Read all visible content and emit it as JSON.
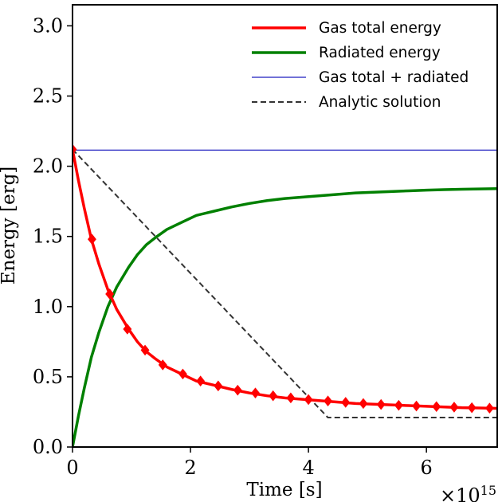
{
  "chart_data": {
    "type": "line",
    "title": "",
    "xlabel": "Time [s]",
    "ylabel": "Energy [erg]",
    "x_scale_label": "×10",
    "x_scale_exponent": "15",
    "xlim": [
      0,
      7.2
    ],
    "ylim": [
      0,
      3.15
    ],
    "x_ticks": [
      0,
      2,
      4,
      6
    ],
    "y_ticks": [
      0.0,
      0.5,
      1.0,
      1.5,
      2.0,
      2.5,
      3.0
    ],
    "y_tick_labels": [
      "0.0",
      "0.5",
      "1.0",
      "1.5",
      "2.0",
      "2.5",
      "3.0"
    ],
    "grid": false,
    "legend_position": "top-right",
    "series": [
      {
        "name": "Gas total energy",
        "color": "#ff0000",
        "style": "solid-with-diamond-markers",
        "x": [
          0,
          0.1,
          0.2,
          0.32,
          0.45,
          0.6,
          0.75,
          0.95,
          1.1,
          1.25,
          1.4,
          1.6,
          1.85,
          2.1,
          2.4,
          2.7,
          3.0,
          3.3,
          3.6,
          3.9,
          4.2,
          4.5,
          4.8,
          5.1,
          5.4,
          5.7,
          6.0,
          6.3,
          6.6,
          6.9,
          7.2
        ],
        "y": [
          2.12,
          1.9,
          1.7,
          1.48,
          1.3,
          1.12,
          0.98,
          0.84,
          0.75,
          0.68,
          0.63,
          0.57,
          0.52,
          0.47,
          0.44,
          0.41,
          0.385,
          0.365,
          0.35,
          0.34,
          0.33,
          0.32,
          0.31,
          0.305,
          0.3,
          0.295,
          0.29,
          0.285,
          0.28,
          0.278,
          0.275
        ],
        "marker_x": [
          0,
          0.33,
          0.63,
          0.93,
          1.23,
          1.53,
          1.87,
          2.17,
          2.47,
          2.8,
          3.1,
          3.4,
          3.7,
          4.0,
          4.33,
          4.63,
          4.93,
          5.23,
          5.53,
          5.83,
          6.17,
          6.47,
          6.77,
          7.07
        ],
        "marker_y": [
          2.12,
          1.48,
          1.09,
          0.84,
          0.69,
          0.585,
          0.52,
          0.47,
          0.435,
          0.405,
          0.385,
          0.365,
          0.35,
          0.338,
          0.328,
          0.318,
          0.31,
          0.303,
          0.297,
          0.292,
          0.288,
          0.284,
          0.28,
          0.277
        ]
      },
      {
        "name": "Radiated energy",
        "color": "#008000",
        "style": "solid",
        "x": [
          0,
          0.1,
          0.2,
          0.32,
          0.45,
          0.6,
          0.75,
          0.95,
          1.1,
          1.25,
          1.4,
          1.6,
          1.85,
          2.1,
          2.4,
          2.7,
          3.0,
          3.3,
          3.6,
          3.9,
          4.2,
          4.5,
          4.8,
          5.1,
          5.4,
          5.7,
          6.0,
          6.3,
          6.6,
          6.9,
          7.2
        ],
        "y": [
          0.0,
          0.22,
          0.42,
          0.64,
          0.82,
          1.0,
          1.14,
          1.28,
          1.37,
          1.44,
          1.49,
          1.55,
          1.6,
          1.65,
          1.68,
          1.71,
          1.735,
          1.755,
          1.77,
          1.78,
          1.79,
          1.8,
          1.81,
          1.815,
          1.82,
          1.825,
          1.83,
          1.833,
          1.836,
          1.838,
          1.84
        ]
      },
      {
        "name": "Gas total + radiated",
        "color": "#1f1fbf",
        "style": "thin-solid",
        "x": [
          0,
          7.2
        ],
        "y": [
          2.115,
          2.115
        ]
      },
      {
        "name": "Analytic solution",
        "color": "#333333",
        "style": "dashed",
        "x": [
          0,
          4.33,
          7.2
        ],
        "y": [
          2.12,
          0.21,
          0.21
        ]
      }
    ]
  }
}
